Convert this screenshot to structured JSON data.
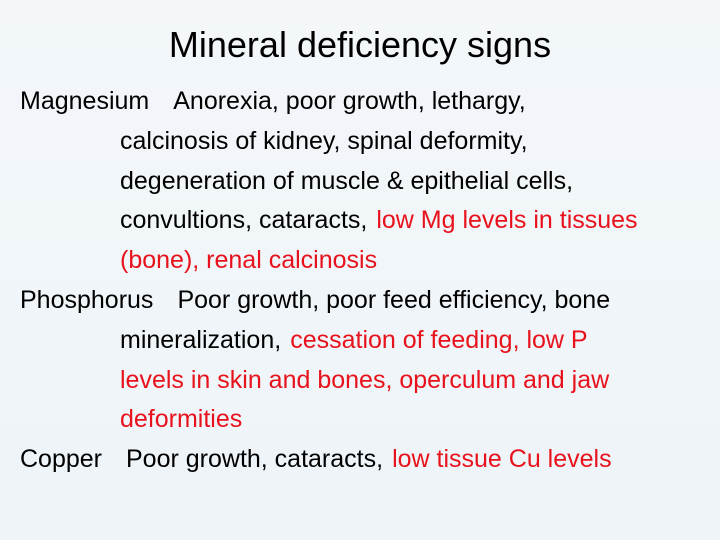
{
  "title": "Mineral deficiency signs",
  "entries": [
    {
      "name": "Magnesium",
      "lines": [
        [
          {
            "text": "Anorexia, poor growth, lethargy,"
          }
        ],
        [
          {
            "text": "calcinosis of kidney, spinal deformity,"
          }
        ],
        [
          {
            "text": "degeneration of muscle & epithelial cells,"
          }
        ],
        [
          {
            "text": "convultions, cataracts,"
          },
          {
            "text": "low Mg levels in tissues",
            "highlight": true
          }
        ],
        [
          {
            "text": "(bone), renal calcinosis",
            "highlight": true
          }
        ]
      ]
    },
    {
      "name": "Phosphorus",
      "lines": [
        [
          {
            "text": "Poor growth, poor feed efficiency, bone"
          }
        ],
        [
          {
            "text": "mineralization,"
          },
          {
            "text": "cessation of feeding, low P",
            "highlight": true
          }
        ],
        [
          {
            "text": "levels in skin and bones, operculum and jaw",
            "highlight": true
          }
        ],
        [
          {
            "text": "deformities",
            "highlight": true
          }
        ]
      ]
    },
    {
      "name": "Copper",
      "lines": [
        [
          {
            "text": "Poor growth, cataracts,"
          },
          {
            "text": "low tissue Cu levels",
            "highlight": true
          }
        ]
      ]
    }
  ]
}
